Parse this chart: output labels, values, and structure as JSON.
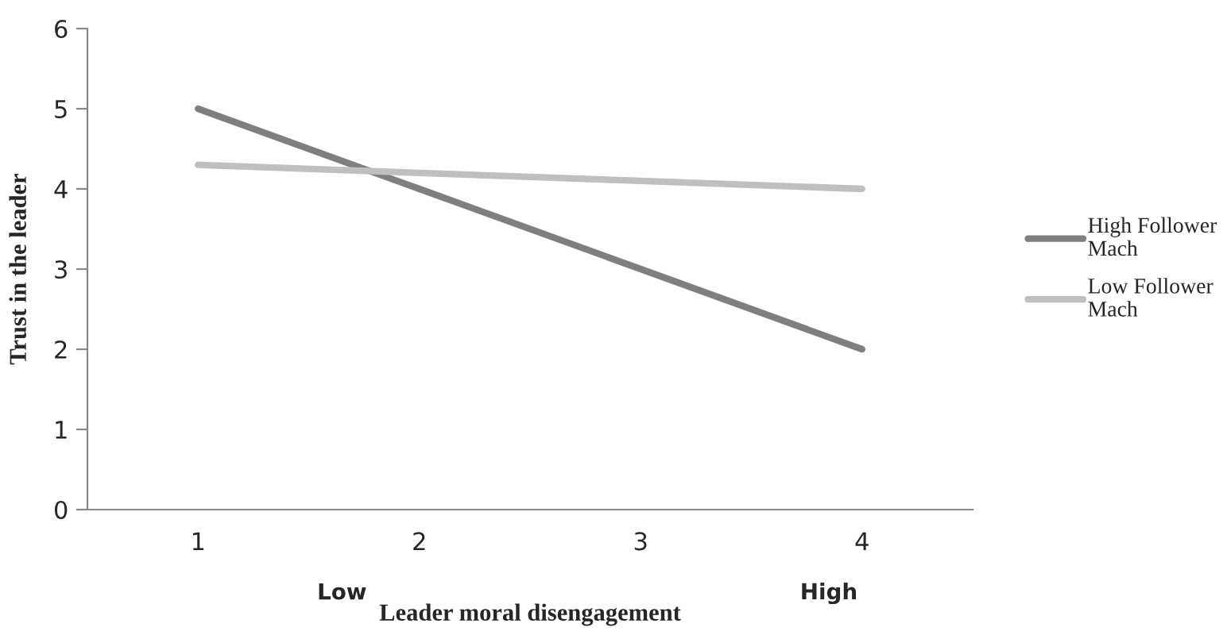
{
  "chart_data": {
    "type": "line",
    "xlabel": "Leader moral disengagement",
    "ylabel": "Trust in the leader",
    "categories": [
      "1",
      "2",
      "3",
      "4"
    ],
    "series": [
      {
        "name": "High Follower Mach",
        "color": "#7f7f7f",
        "values": [
          5,
          4,
          3,
          2
        ]
      },
      {
        "name": "Low Follower Mach",
        "color": "#bfbfbf",
        "values": [
          4.3,
          4.2,
          4.1,
          4.0
        ]
      }
    ],
    "ylim": [
      0,
      6
    ],
    "yticks": [
      0,
      1,
      2,
      3,
      4,
      5,
      6
    ],
    "grid": false,
    "legend": "right",
    "marker": "none",
    "line_style": "solid",
    "annotations": [
      "Low",
      "High"
    ]
  }
}
